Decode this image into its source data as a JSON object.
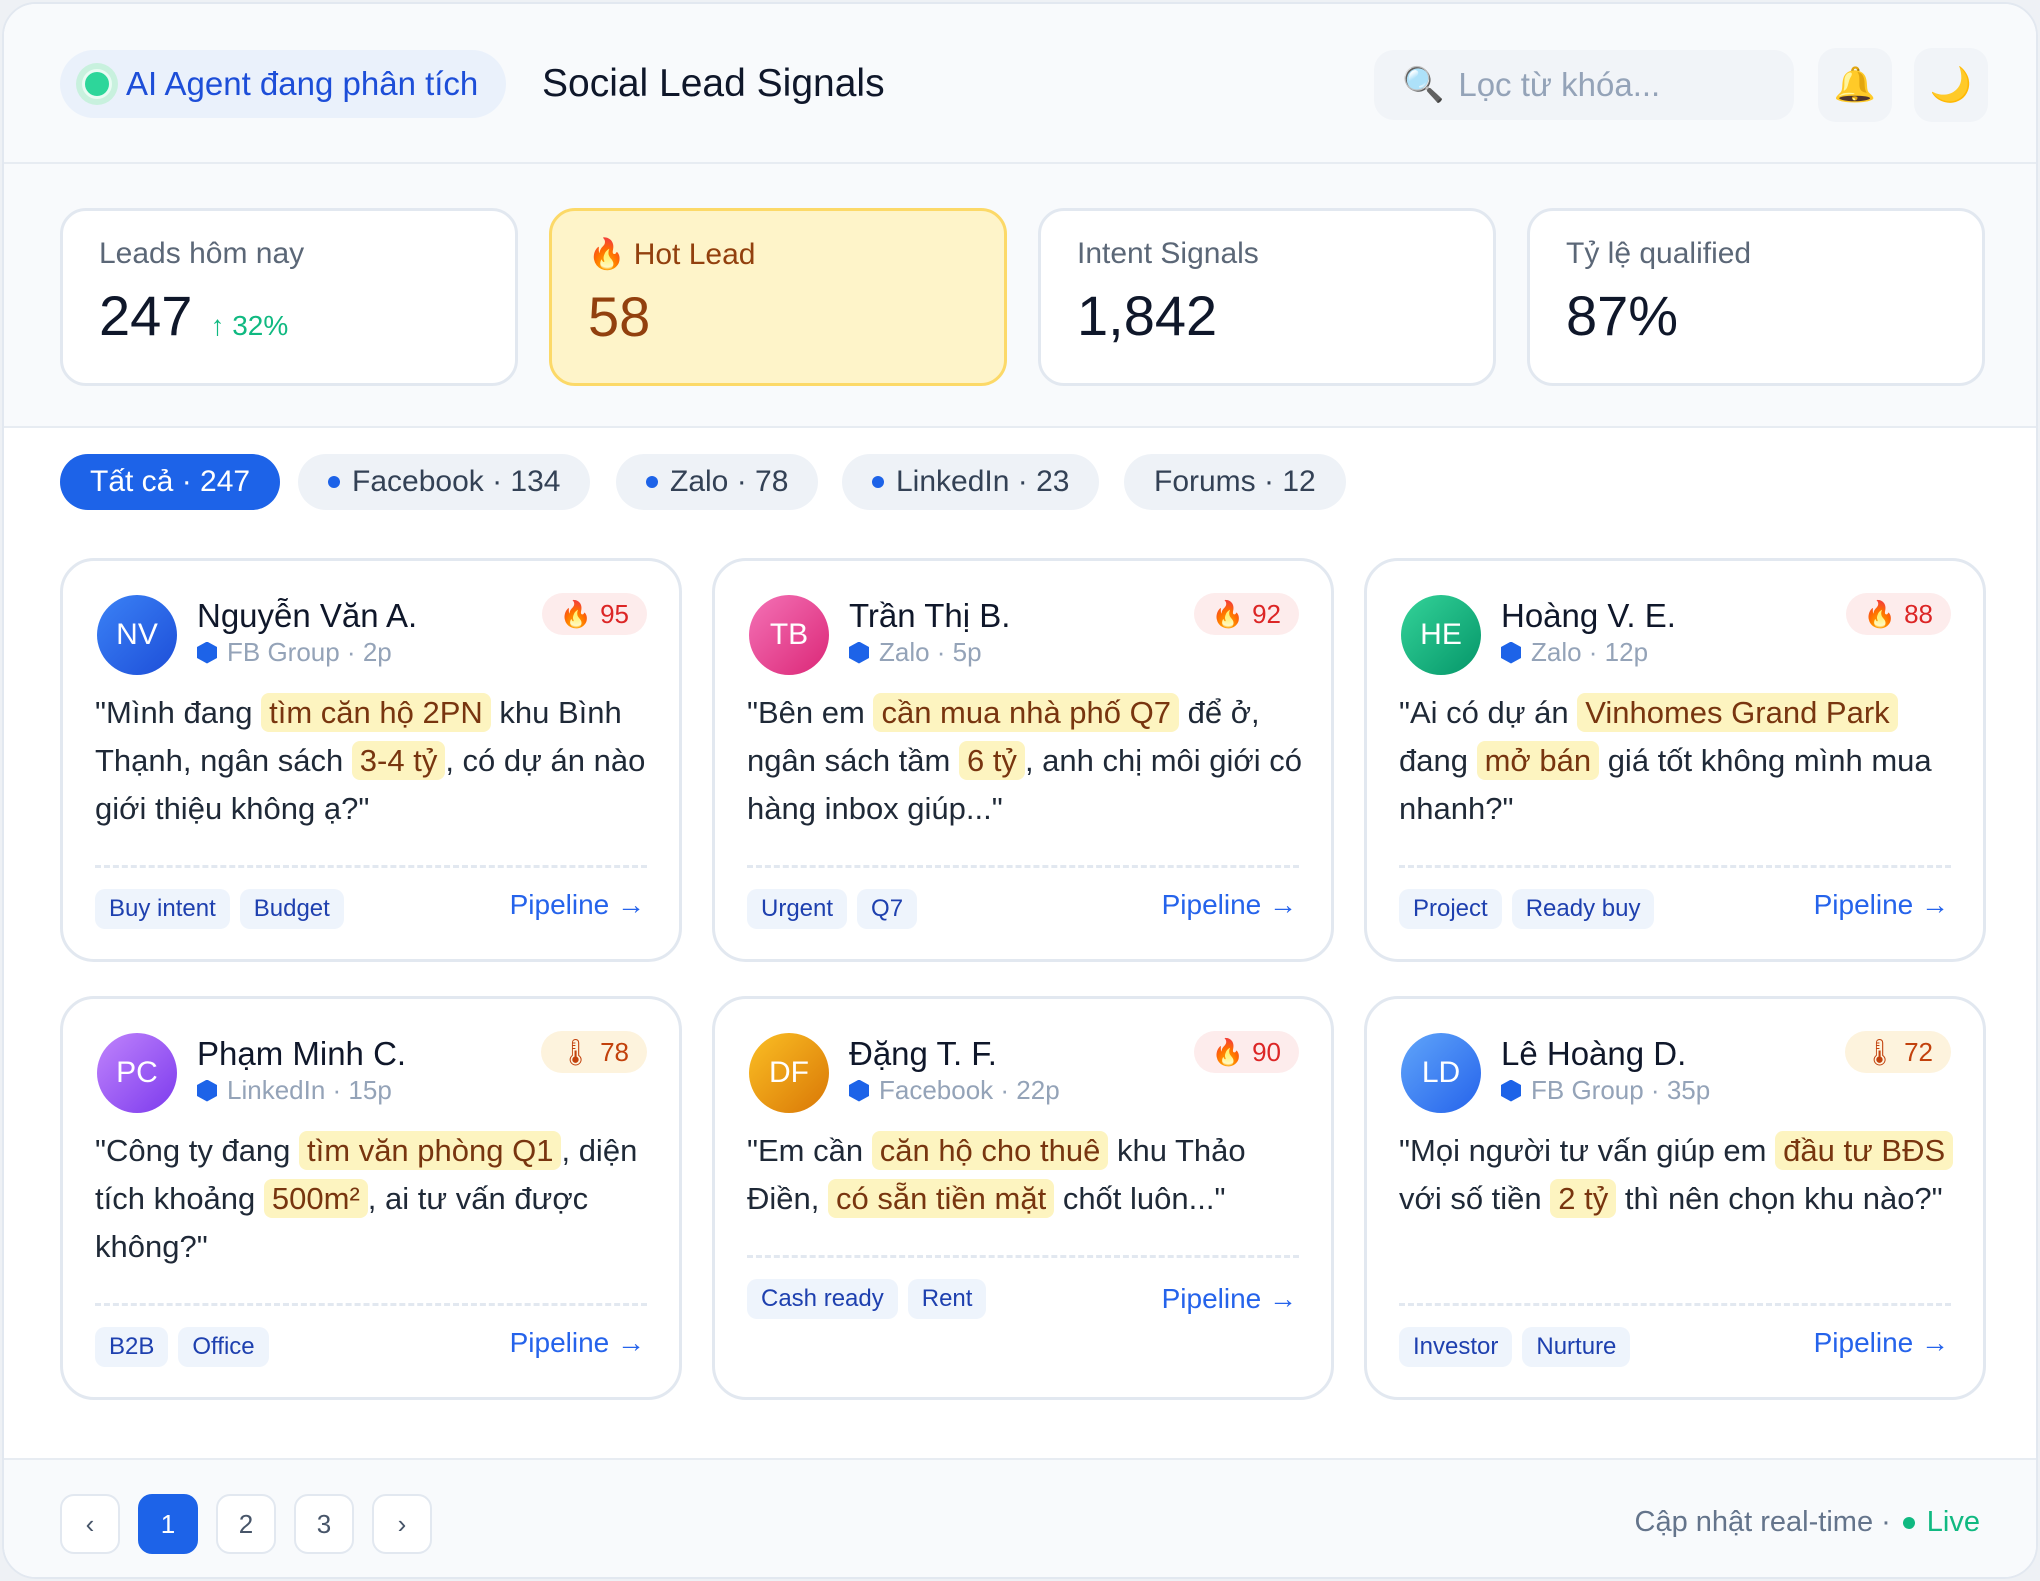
{
  "header": {
    "agent_status": "AI Agent đang phân tích",
    "title": "Social Lead Signals",
    "search_placeholder": "Lọc từ khóa...",
    "icons": [
      "search-icon",
      "bell-icon",
      "moon-icon"
    ]
  },
  "stats": [
    {
      "label": "Leads hôm nay",
      "value": "247",
      "delta": "↑ 32%"
    },
    {
      "label": "Hot Lead",
      "icon": "🔥",
      "value": "58"
    },
    {
      "label": "Intent Signals",
      "value": "1,842"
    },
    {
      "label": "Tỷ lệ qualified",
      "value": "87%"
    }
  ],
  "filters": [
    {
      "label": "Tất cả · 247",
      "active": true
    },
    {
      "label": "Facebook · 134",
      "dot": true
    },
    {
      "label": "Zalo · 78",
      "dot": true
    },
    {
      "label": "LinkedIn · 23",
      "dot": true
    },
    {
      "label": "Forums · 12"
    }
  ],
  "pipeline_label": "Pipeline →",
  "leads": [
    {
      "initials": "NV",
      "name": "Nguyễn Văn A.",
      "source": "FB Group · 2p",
      "score_icon": "🔥",
      "score": "95",
      "quote": [
        "\"Mình đang ",
        {
          "hl": "tìm căn hộ 2PN"
        },
        " khu Bình Thạnh, ngân sách ",
        {
          "hl": "3-4 tỷ"
        },
        ", có dự án nào giới thiệu không ạ?\""
      ],
      "tags": [
        "Buy intent",
        "Budget"
      ]
    },
    {
      "initials": "TB",
      "name": "Trần Thị B.",
      "source": "Zalo · 5p",
      "score_icon": "🔥",
      "score": "92",
      "quote": [
        "\"Bên em ",
        {
          "hl": "cần mua nhà phố Q7"
        },
        " để ở, ngân sách tầm ",
        {
          "hl": "6 tỷ"
        },
        ", anh chị môi giới có hàng inbox giúp...\""
      ],
      "tags": [
        "Urgent",
        "Q7"
      ]
    },
    {
      "initials": "HE",
      "name": "Hoàng V. E.",
      "source": "Zalo · 12p",
      "score_icon": "🔥",
      "score": "88",
      "quote": [
        "\"Ai có dự án ",
        {
          "hl": "Vinhomes Grand Park"
        },
        " đang ",
        {
          "hl": "mở bán"
        },
        " giá tốt không mình mua nhanh?\""
      ],
      "tags": [
        "Project",
        "Ready buy"
      ]
    },
    {
      "initials": "PC",
      "name": "Phạm Minh C.",
      "source": "LinkedIn · 15p",
      "score_icon": "🌡",
      "score": "78",
      "quote": [
        "\"Công ty đang ",
        {
          "hl": "tìm văn phòng Q1"
        },
        ", diện tích khoảng ",
        {
          "hl": "500m²"
        },
        ", ai tư vấn được không?\""
      ],
      "tags": [
        "B2B",
        "Office"
      ]
    },
    {
      "initials": "DF",
      "name": "Đặng T. F.",
      "source": "Facebook · 22p",
      "score_icon": "🔥",
      "score": "90",
      "quote": [
        "\"Em cần ",
        {
          "hl": "căn hộ cho thuê"
        },
        " khu Thảo Điền, ",
        {
          "hl": "có sẵn tiền mặt"
        },
        " chốt luôn...\""
      ],
      "tags": [
        "Cash ready",
        "Rent"
      ]
    },
    {
      "initials": "LD",
      "name": "Lê Hoàng D.",
      "source": "FB Group · 35p",
      "score_icon": "🌡",
      "score": "72",
      "quote": [
        "\"Mọi người tư vấn giúp em ",
        {
          "hl": "đầu tư BĐS"
        },
        " với số tiền ",
        {
          "hl": "2 tỷ"
        },
        " thì nên chọn khu nào?\""
      ],
      "tags": [
        "Investor",
        "Nurture"
      ]
    }
  ],
  "pagination": {
    "prev": "‹",
    "pages": [
      "1",
      "2",
      "3"
    ],
    "active": "1",
    "next": "›"
  },
  "footer": {
    "status": "Cập nhật real-time ·",
    "live": "Live"
  }
}
